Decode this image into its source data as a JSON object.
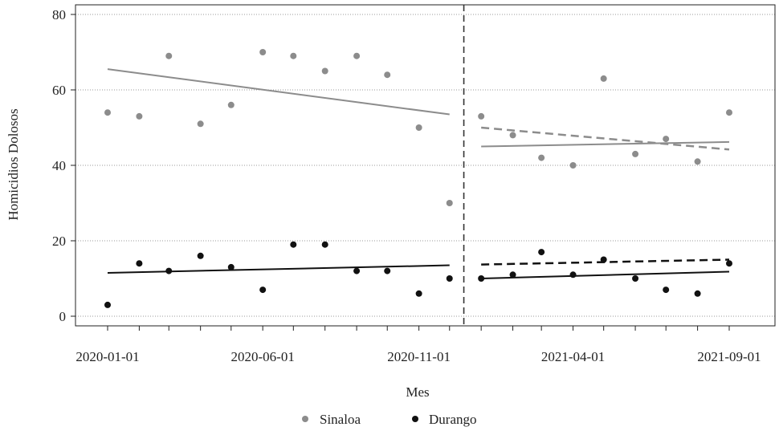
{
  "chart_data": {
    "type": "scatter",
    "xlabel": "Mes",
    "ylabel": "Homicidios Dolosos",
    "x_tick_labels": [
      "2020-01-01",
      "2020-06-01",
      "2020-11-01",
      "2021-04-01",
      "2021-09-01"
    ],
    "ylim": [
      0,
      80
    ],
    "y_ticks": [
      0,
      20,
      40,
      60,
      80
    ],
    "grid": "horizontal dotted",
    "legend_position": "bottom",
    "cutoff_date": "2020-12-15",
    "x": [
      "2020-01-01",
      "2020-02-01",
      "2020-03-01",
      "2020-04-01",
      "2020-05-01",
      "2020-06-01",
      "2020-07-01",
      "2020-08-01",
      "2020-09-01",
      "2020-10-01",
      "2020-11-01",
      "2020-12-01",
      "2021-01-01",
      "2021-02-01",
      "2021-03-01",
      "2021-04-01",
      "2021-05-01",
      "2021-06-01",
      "2021-07-01",
      "2021-08-01",
      "2021-09-01"
    ],
    "series": [
      {
        "name": "Sinaloa",
        "color": "#8c8c8c",
        "values": [
          54,
          53,
          69,
          51,
          56,
          70,
          69,
          65,
          69,
          64,
          50,
          30,
          53,
          48,
          42,
          40,
          63,
          43,
          47,
          41,
          54
        ],
        "trend_pre": [
          65.5,
          53.5
        ],
        "trend_post": [
          45,
          46.2
        ],
        "trend_counterfactual": [
          50,
          44.2
        ]
      },
      {
        "name": "Durango",
        "color": "#111111",
        "values": [
          3,
          14,
          12,
          16,
          13,
          7,
          19,
          19,
          12,
          12,
          6,
          10,
          10,
          11,
          17,
          11,
          15,
          10,
          7,
          6,
          14
        ],
        "trend_pre": [
          11.5,
          13.5
        ],
        "trend_post": [
          10,
          11.8
        ],
        "trend_counterfactual": [
          13.7,
          15
        ]
      }
    ]
  }
}
